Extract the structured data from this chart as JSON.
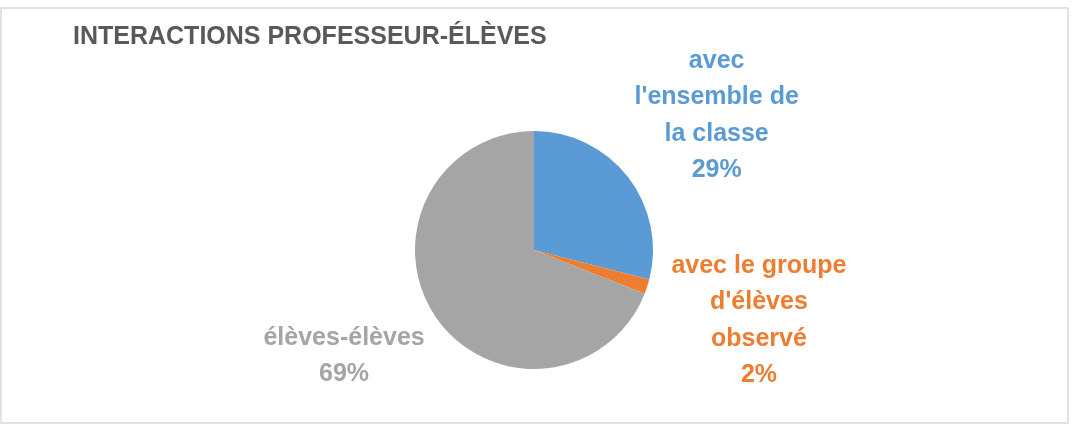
{
  "chart_data": {
    "type": "pie",
    "title": "INTERACTIONS PROFESSEUR-ÉLÈVES",
    "categories": [
      "avec l'ensemble de la classe",
      "avec le groupe d'élèves observé",
      "élèves-élèves"
    ],
    "values": [
      29,
      2,
      69
    ],
    "colors": [
      "#5b9bd5",
      "#ed7d31",
      "#a5a5a5"
    ],
    "value_labels": [
      "29%",
      "2%",
      "69%"
    ]
  }
}
